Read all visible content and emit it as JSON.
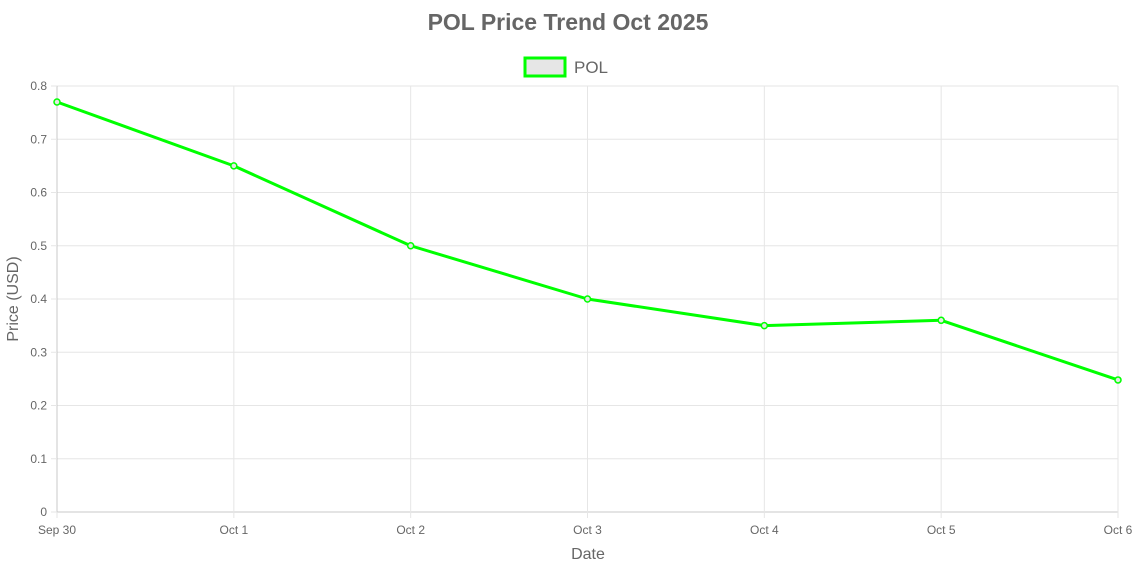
{
  "chart_data": {
    "type": "line",
    "title": "POL Price Trend Oct 2025",
    "xlabel": "Date",
    "ylabel": "Price (USD)",
    "categories": [
      "Sep 30",
      "Oct 1",
      "Oct 2",
      "Oct 3",
      "Oct 4",
      "Oct 5",
      "Oct 6"
    ],
    "series": [
      {
        "name": "POL",
        "values": [
          0.77,
          0.65,
          0.5,
          0.4,
          0.35,
          0.36,
          0.248
        ],
        "color": "#00ff00",
        "fill": "#e6e6e6"
      }
    ],
    "ylim": [
      0,
      0.8
    ],
    "yticks": [
      "0",
      "0.1",
      "0.2",
      "0.3",
      "0.4",
      "0.5",
      "0.6",
      "0.7",
      "0.8"
    ],
    "grid": true,
    "legend_position": "top"
  }
}
